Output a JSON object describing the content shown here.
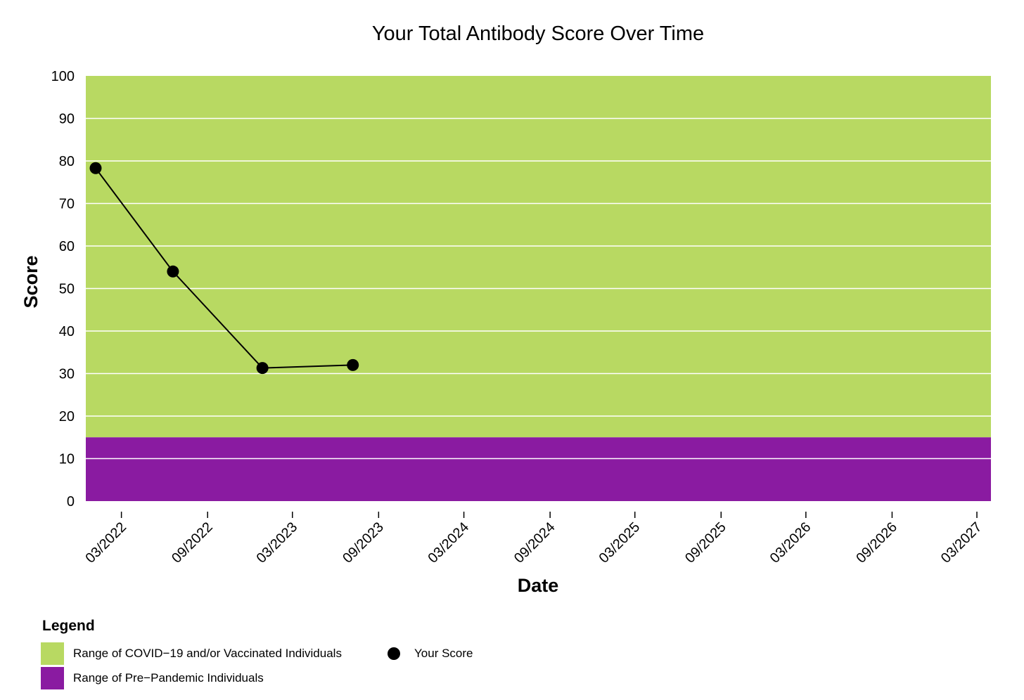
{
  "chart_data": {
    "type": "line",
    "title": "Your Total Antibody Score Over Time",
    "xlabel": "Date",
    "ylabel": "Score",
    "ylim": [
      0,
      100
    ],
    "xlim": [
      "2021-12-15",
      "2027-03-31"
    ],
    "yticks": [
      0,
      10,
      20,
      30,
      40,
      50,
      60,
      70,
      80,
      90,
      100
    ],
    "xticks": [
      {
        "date": "2022-03-01",
        "label": "03/2022"
      },
      {
        "date": "2022-09-01",
        "label": "09/2022"
      },
      {
        "date": "2023-03-01",
        "label": "03/2023"
      },
      {
        "date": "2023-09-01",
        "label": "09/2023"
      },
      {
        "date": "2024-03-01",
        "label": "03/2024"
      },
      {
        "date": "2024-09-01",
        "label": "09/2024"
      },
      {
        "date": "2025-03-01",
        "label": "03/2025"
      },
      {
        "date": "2025-09-01",
        "label": "09/2025"
      },
      {
        "date": "2026-03-01",
        "label": "03/2026"
      },
      {
        "date": "2026-09-01",
        "label": "09/2026"
      },
      {
        "date": "2027-03-01",
        "label": "03/2027"
      }
    ],
    "grid": "horizontal",
    "bands": [
      {
        "name": "Range of COVID−19 and/or Vaccinated Individuals",
        "from": 15,
        "to": 100,
        "color": "#b8d962"
      },
      {
        "name": "Range of Pre−Pandemic Individuals",
        "from": 0,
        "to": 15,
        "color": "#8a1ba1"
      }
    ],
    "series": [
      {
        "name": "Your Score",
        "color": "#000000",
        "points": [
          {
            "x": "2022-01-05",
            "y": 78.3
          },
          {
            "x": "2022-06-19",
            "y": 54.0
          },
          {
            "x": "2022-12-27",
            "y": 31.3
          },
          {
            "x": "2023-07-08",
            "y": 32.0
          }
        ]
      }
    ]
  },
  "legend": {
    "title": "Legend",
    "placement": "bottom-left",
    "items": [
      {
        "label": "Range of COVID−19 and/or Vaccinated Individuals",
        "color": "#b8d962"
      },
      {
        "label": "Range of Pre−Pandemic Individuals",
        "color": "#8a1ba1"
      },
      {
        "label": "Your Score",
        "color": "#000000"
      }
    ]
  }
}
